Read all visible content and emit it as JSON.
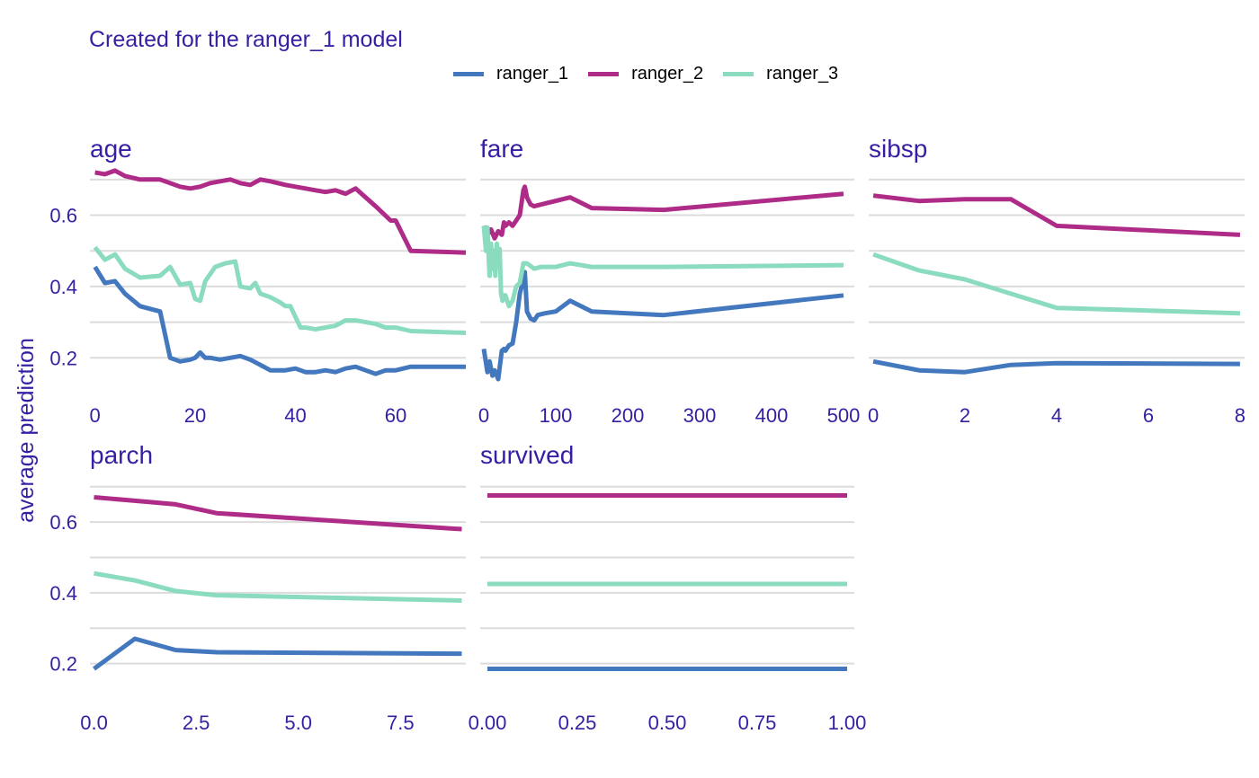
{
  "chart_data": {
    "type": "line",
    "subtitle": "Created for the ranger_1 model",
    "ylabel": "average prediction",
    "legend_position": "top",
    "grid": true,
    "shared_y": {
      "ylim": [
        0.1,
        0.75
      ],
      "ticks": [
        0.2,
        0.4,
        0.6
      ],
      "tick_labels": [
        "0.2",
        "0.4",
        "0.6"
      ]
    },
    "legend": [
      {
        "name": "ranger_1",
        "color": "#4378bf"
      },
      {
        "name": "ranger_2",
        "color": "#ae2c87"
      },
      {
        "name": "ranger_3",
        "color": "#8bdcbe"
      }
    ],
    "panels": [
      {
        "title": "age",
        "xlim": [
          -1,
          74
        ],
        "xticks": [
          0,
          20,
          40,
          60
        ],
        "xtick_labels": [
          "0",
          "20",
          "40",
          "60"
        ],
        "series": [
          {
            "name": "ranger_1",
            "x": [
              0,
              2,
              4,
              6,
              9,
              13,
              15,
              17,
              19,
              20,
              21,
              22,
              23,
              25,
              27,
              29,
              31,
              33,
              35,
              38,
              40,
              42,
              44,
              46,
              48,
              50,
              52,
              54,
              56,
              58,
              60,
              63,
              74
            ],
            "y": [
              0.455,
              0.41,
              0.415,
              0.38,
              0.345,
              0.33,
              0.2,
              0.19,
              0.195,
              0.2,
              0.215,
              0.2,
              0.2,
              0.195,
              0.2,
              0.205,
              0.195,
              0.18,
              0.165,
              0.165,
              0.17,
              0.16,
              0.16,
              0.165,
              0.16,
              0.17,
              0.175,
              0.165,
              0.155,
              0.165,
              0.165,
              0.175,
              0.175
            ]
          },
          {
            "name": "ranger_2",
            "x": [
              0,
              2,
              4,
              6,
              9,
              13,
              15,
              17,
              19,
              21,
              23,
              25,
              27,
              29,
              31,
              33,
              35,
              38,
              40,
              42,
              44,
              46,
              48,
              50,
              52,
              56,
              59,
              60,
              63,
              74
            ],
            "y": [
              0.72,
              0.715,
              0.725,
              0.71,
              0.7,
              0.7,
              0.69,
              0.68,
              0.675,
              0.68,
              0.69,
              0.695,
              0.7,
              0.69,
              0.685,
              0.7,
              0.695,
              0.685,
              0.68,
              0.675,
              0.67,
              0.665,
              0.67,
              0.66,
              0.675,
              0.625,
              0.585,
              0.585,
              0.5,
              0.495
            ]
          },
          {
            "name": "ranger_3",
            "x": [
              0,
              2,
              4,
              6,
              9,
              13,
              15,
              17,
              19,
              20,
              21,
              22,
              24,
              26,
              28,
              29,
              31,
              32,
              33,
              35,
              37,
              38,
              39,
              41,
              42,
              44,
              46,
              48,
              50,
              52,
              54,
              56,
              58,
              60,
              63,
              74
            ],
            "y": [
              0.51,
              0.475,
              0.49,
              0.45,
              0.425,
              0.43,
              0.455,
              0.405,
              0.41,
              0.365,
              0.36,
              0.415,
              0.455,
              0.465,
              0.47,
              0.4,
              0.395,
              0.41,
              0.38,
              0.37,
              0.355,
              0.345,
              0.345,
              0.285,
              0.285,
              0.28,
              0.285,
              0.29,
              0.305,
              0.305,
              0.3,
              0.295,
              0.285,
              0.285,
              0.275,
              0.27
            ]
          }
        ]
      },
      {
        "title": "fare",
        "xlim": [
          -5,
          515
        ],
        "xticks": [
          0,
          100,
          200,
          300,
          400,
          500
        ],
        "xtick_labels": [
          "0",
          "100",
          "200",
          "300",
          "400",
          "500"
        ],
        "series": [
          {
            "name": "ranger_1",
            "x": [
              0,
              5,
              8,
              12,
              15,
              20,
              25,
              28,
              30,
              35,
              40,
              45,
              50,
              55,
              57,
              60,
              65,
              70,
              75,
              85,
              100,
              120,
              150,
              250,
              500
            ],
            "y": [
              0.225,
              0.16,
              0.19,
              0.15,
              0.165,
              0.14,
              0.22,
              0.225,
              0.22,
              0.235,
              0.24,
              0.3,
              0.38,
              0.42,
              0.44,
              0.33,
              0.31,
              0.305,
              0.32,
              0.325,
              0.33,
              0.36,
              0.33,
              0.32,
              0.375
            ]
          },
          {
            "name": "ranger_2",
            "x": [
              0,
              5,
              10,
              15,
              20,
              25,
              28,
              30,
              35,
              40,
              45,
              50,
              55,
              57,
              60,
              65,
              70,
              80,
              90,
              120,
              150,
              250,
              500
            ],
            "y": [
              0.57,
              0.545,
              0.56,
              0.535,
              0.555,
              0.545,
              0.58,
              0.57,
              0.58,
              0.57,
              0.585,
              0.6,
              0.67,
              0.68,
              0.65,
              0.63,
              0.625,
              0.63,
              0.635,
              0.65,
              0.62,
              0.615,
              0.66
            ]
          },
          {
            "name": "ranger_3",
            "x": [
              0,
              3,
              5,
              8,
              10,
              12,
              14,
              16,
              18,
              20,
              22,
              24,
              26,
              28,
              30,
              35,
              40,
              45,
              50,
              55,
              60,
              70,
              80,
              100,
              120,
              150,
              250,
              500
            ],
            "y": [
              0.57,
              0.5,
              0.565,
              0.43,
              0.52,
              0.45,
              0.5,
              0.43,
              0.52,
              0.49,
              0.505,
              0.38,
              0.36,
              0.375,
              0.375,
              0.345,
              0.36,
              0.4,
              0.41,
              0.465,
              0.465,
              0.45,
              0.455,
              0.455,
              0.465,
              0.455,
              0.455,
              0.46
            ]
          }
        ]
      },
      {
        "title": "sibsp",
        "xlim": [
          -0.1,
          8.1
        ],
        "xticks": [
          0,
          2,
          4,
          6,
          8
        ],
        "xtick_labels": [
          "0",
          "2",
          "4",
          "6",
          "8"
        ],
        "series": [
          {
            "name": "ranger_1",
            "x": [
              0,
              1,
              2,
              3,
              4,
              8
            ],
            "y": [
              0.19,
              0.165,
              0.16,
              0.18,
              0.185,
              0.183
            ]
          },
          {
            "name": "ranger_2",
            "x": [
              0,
              1,
              2,
              3,
              4,
              8
            ],
            "y": [
              0.655,
              0.64,
              0.645,
              0.645,
              0.57,
              0.545
            ]
          },
          {
            "name": "ranger_3",
            "x": [
              0,
              1,
              2,
              3,
              4,
              8
            ],
            "y": [
              0.49,
              0.445,
              0.42,
              0.38,
              0.34,
              0.325
            ]
          }
        ]
      },
      {
        "title": "parch",
        "xlim": [
          -0.1,
          9.1
        ],
        "xticks": [
          0,
          2.5,
          5,
          7.5
        ],
        "xtick_labels": [
          "0.0",
          "2.5",
          "5.0",
          "7.5"
        ],
        "series": [
          {
            "name": "ranger_1",
            "x": [
              0,
              1,
              2,
              3,
              9
            ],
            "y": [
              0.185,
              0.27,
              0.238,
              0.232,
              0.228
            ]
          },
          {
            "name": "ranger_2",
            "x": [
              0,
              1,
              2,
              3,
              9
            ],
            "y": [
              0.67,
              0.66,
              0.65,
              0.625,
              0.58
            ]
          },
          {
            "name": "ranger_3",
            "x": [
              0,
              1,
              2,
              3,
              9
            ],
            "y": [
              0.455,
              0.435,
              0.405,
              0.393,
              0.378
            ]
          }
        ]
      },
      {
        "title": "survived",
        "xlim": [
          -0.02,
          1.02
        ],
        "xticks": [
          0,
          0.25,
          0.5,
          0.75,
          1
        ],
        "xtick_labels": [
          "0.00",
          "0.25",
          "0.50",
          "0.75",
          "1.00"
        ],
        "series": [
          {
            "name": "ranger_1",
            "x": [
              0,
              1
            ],
            "y": [
              0.185,
              0.185
            ]
          },
          {
            "name": "ranger_2",
            "x": [
              0,
              1
            ],
            "y": [
              0.675,
              0.675
            ]
          },
          {
            "name": "ranger_3",
            "x": [
              0,
              1
            ],
            "y": [
              0.425,
              0.425
            ]
          }
        ]
      }
    ]
  }
}
